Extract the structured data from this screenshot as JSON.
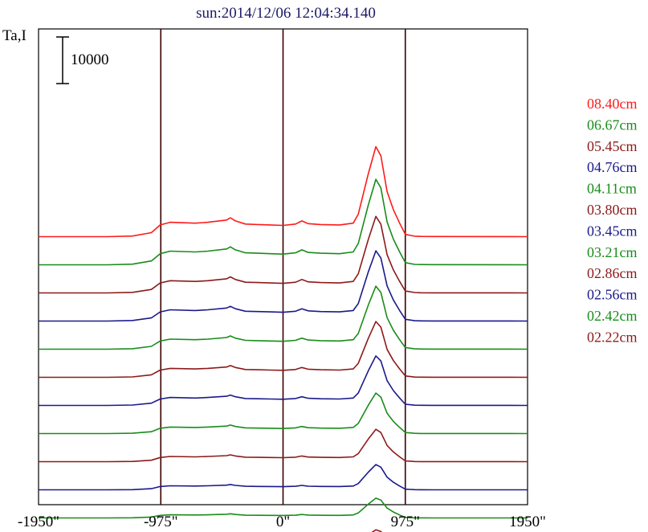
{
  "chart_data": {
    "type": "line",
    "title": "sun:2014/12/06 12:04:34.140",
    "ylabel": "Ta,I",
    "scale_bar_label": "10000",
    "xlim": [
      -1950,
      1950
    ],
    "x_ticks": [
      {
        "value": -1950,
        "label": "-1950\""
      },
      {
        "value": -975,
        "label": "-975\""
      },
      {
        "value": 0,
        "label": "0\""
      },
      {
        "value": 975,
        "label": "975\""
      },
      {
        "value": 1950,
        "label": "1950\""
      }
    ],
    "vertical_lines": [
      -975,
      0,
      975
    ],
    "grid": false,
    "legend_position": "right",
    "profile_x": [
      -1950,
      -1400,
      -1200,
      -1050,
      -980,
      -900,
      -700,
      -600,
      -450,
      -420,
      -380,
      -300,
      -200,
      -100,
      0,
      100,
      150,
      200,
      300,
      450,
      560,
      600,
      680,
      740,
      780,
      830,
      880,
      930,
      975,
      1050,
      1100,
      1200,
      1950
    ],
    "series": [
      {
        "name": "08.40cm",
        "color": "#ff1a1a",
        "offset": 17,
        "scale": 1.0,
        "values": [
          0,
          0,
          150,
          900,
          2600,
          3200,
          3000,
          3200,
          3700,
          4200,
          3500,
          2800,
          2700,
          2600,
          2500,
          2800,
          3500,
          2900,
          2700,
          2600,
          3000,
          5000,
          14000,
          20000,
          18000,
          10000,
          6000,
          3000,
          500,
          100,
          50,
          30,
          0
        ]
      },
      {
        "name": "06.67cm",
        "color": "#1a8c1a",
        "offset": 15,
        "scale": 0.95,
        "values": [
          0,
          0,
          150,
          900,
          2600,
          3200,
          3000,
          3200,
          3700,
          4200,
          3500,
          2800,
          2700,
          2600,
          2500,
          2800,
          3500,
          2900,
          2700,
          2600,
          3000,
          5000,
          14000,
          20000,
          18000,
          10000,
          6000,
          3000,
          500,
          100,
          50,
          30,
          0
        ]
      },
      {
        "name": "05.45cm",
        "color": "#8c1a1a",
        "offset": 13,
        "scale": 0.85,
        "values": [
          0,
          0,
          150,
          900,
          2600,
          3200,
          3000,
          3200,
          3700,
          4200,
          3500,
          2800,
          2700,
          2600,
          2500,
          2800,
          3500,
          2900,
          2700,
          2600,
          3000,
          5000,
          14000,
          20000,
          18000,
          10000,
          6000,
          3000,
          500,
          100,
          50,
          30,
          0
        ]
      },
      {
        "name": "04.76cm",
        "color": "#1a1a8c",
        "offset": 11,
        "scale": 0.78,
        "values": [
          0,
          0,
          150,
          900,
          2600,
          3200,
          3000,
          3200,
          3700,
          4200,
          3500,
          2800,
          2700,
          2600,
          2500,
          2800,
          3500,
          2900,
          2700,
          2600,
          3000,
          5000,
          14000,
          20000,
          18000,
          10000,
          6000,
          3000,
          500,
          100,
          50,
          30,
          0
        ]
      },
      {
        "name": "04.11cm",
        "color": "#1a8c1a",
        "offset": 9,
        "scale": 0.7,
        "values": [
          0,
          0,
          150,
          900,
          2600,
          3200,
          3000,
          3200,
          3700,
          4200,
          3500,
          2800,
          2700,
          2600,
          2500,
          2800,
          3500,
          2900,
          2700,
          2600,
          3000,
          5000,
          14000,
          20000,
          18000,
          10000,
          6000,
          3000,
          500,
          100,
          50,
          30,
          0
        ]
      },
      {
        "name": "03.80cm",
        "color": "#8c1a1a",
        "offset": 7,
        "scale": 0.62,
        "values": [
          0,
          0,
          150,
          900,
          2600,
          3200,
          3000,
          3200,
          3700,
          4200,
          3500,
          2800,
          2700,
          2600,
          2500,
          2800,
          3500,
          2900,
          2700,
          2600,
          3000,
          5000,
          14000,
          20000,
          18000,
          10000,
          6000,
          3000,
          500,
          100,
          50,
          30,
          0
        ]
      },
      {
        "name": "03.45cm",
        "color": "#1a1a8c",
        "offset": 5,
        "scale": 0.55,
        "values": [
          0,
          0,
          150,
          900,
          2600,
          3200,
          3000,
          3200,
          3700,
          4200,
          3500,
          2800,
          2700,
          2600,
          2500,
          2800,
          3500,
          2900,
          2700,
          2600,
          3000,
          5000,
          14000,
          20000,
          18000,
          10000,
          6000,
          3000,
          500,
          100,
          50,
          30,
          0
        ]
      },
      {
        "name": "03.21cm",
        "color": "#1a8c1a",
        "offset": 3,
        "scale": 0.45,
        "values": [
          0,
          0,
          150,
          900,
          2600,
          3200,
          3000,
          3200,
          3700,
          4200,
          3500,
          2800,
          2700,
          2600,
          2500,
          2800,
          3500,
          2900,
          2700,
          2600,
          3000,
          5000,
          14000,
          20000,
          18000,
          10000,
          6000,
          3000,
          500,
          100,
          50,
          30,
          0
        ]
      },
      {
        "name": "02.86cm",
        "color": "#8c1a1a",
        "offset": 1,
        "scale": 0.36,
        "values": [
          0,
          0,
          150,
          900,
          2600,
          3200,
          3000,
          3200,
          3700,
          4200,
          3500,
          2800,
          2700,
          2600,
          2500,
          2800,
          3500,
          2900,
          2700,
          2600,
          3000,
          5000,
          14000,
          20000,
          18000,
          10000,
          6000,
          3000,
          500,
          100,
          50,
          30,
          0
        ]
      },
      {
        "name": "02.56cm",
        "color": "#1a1a8c",
        "offset": -1,
        "scale": 0.28,
        "values": [
          0,
          0,
          150,
          900,
          2600,
          3200,
          3000,
          3200,
          3700,
          4200,
          3500,
          2800,
          2700,
          2600,
          2500,
          2800,
          3500,
          2900,
          2700,
          2600,
          3000,
          5000,
          14000,
          20000,
          18000,
          10000,
          6000,
          3000,
          500,
          100,
          50,
          30,
          0
        ]
      },
      {
        "name": "02.42cm",
        "color": "#1a8c1a",
        "offset": -3,
        "scale": 0.22,
        "values": [
          0,
          0,
          150,
          900,
          2600,
          3200,
          3000,
          3200,
          3700,
          4200,
          3500,
          2800,
          2700,
          2600,
          2500,
          2800,
          3500,
          2900,
          2700,
          2600,
          3000,
          5000,
          14000,
          20000,
          18000,
          10000,
          6000,
          3000,
          500,
          100,
          50,
          30,
          0
        ]
      },
      {
        "name": "02.22cm",
        "color": "#8c1a1a",
        "offset": -5,
        "scale": 0.18,
        "values": [
          0,
          0,
          150,
          900,
          2600,
          3200,
          3000,
          3200,
          3700,
          4200,
          3500,
          2800,
          2700,
          2600,
          2500,
          2800,
          3500,
          2900,
          2700,
          2600,
          3000,
          5000,
          14000,
          20000,
          18000,
          10000,
          6000,
          3000,
          500,
          100,
          50,
          30,
          0
        ]
      }
    ]
  }
}
